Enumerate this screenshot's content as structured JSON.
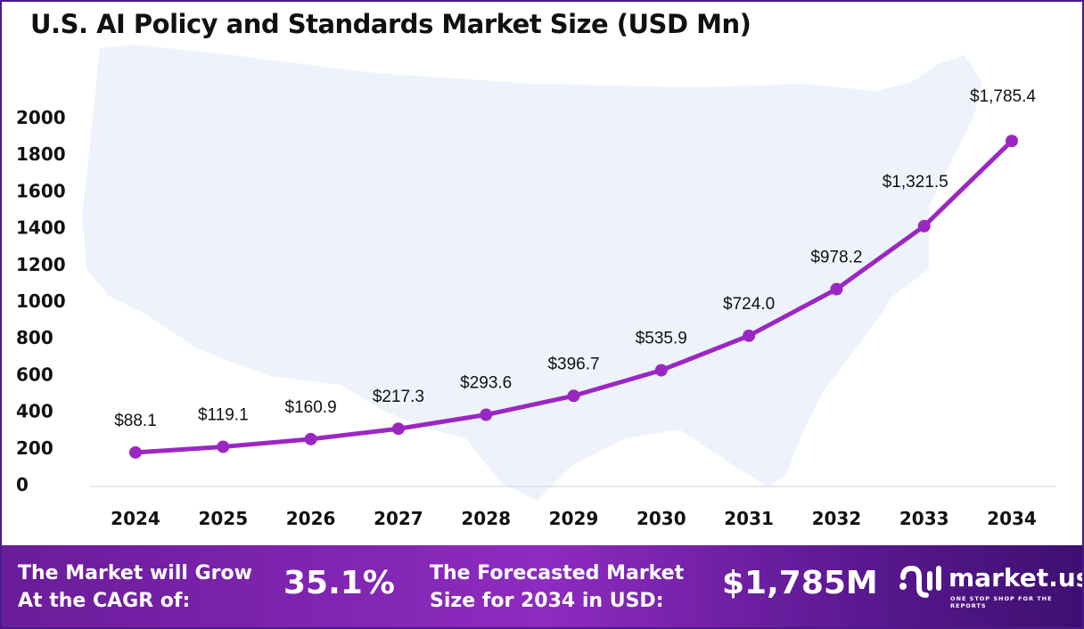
{
  "title": "U.S. AI Policy and Standards Market Size (USD Mn)",
  "chart_data": {
    "type": "line",
    "categories": [
      "2024",
      "2025",
      "2026",
      "2027",
      "2028",
      "2029",
      "2030",
      "2031",
      "2032",
      "2033",
      "2034"
    ],
    "values": [
      88.1,
      119.1,
      160.9,
      217.3,
      293.6,
      396.7,
      535.9,
      724.0,
      978.2,
      1321.5,
      1785.4
    ],
    "data_labels": [
      "$88.1",
      "$119.1",
      "$160.9",
      "$217.3",
      "$293.6",
      "$396.7",
      "$535.9",
      "$724.0",
      "$978.2",
      "$1,321.5",
      "$1,785.4"
    ],
    "yticks": [
      "0",
      "200",
      "400",
      "600",
      "800",
      "1000",
      "1200",
      "1400",
      "1600",
      "1800",
      "2000"
    ],
    "ylim": [
      0,
      2000
    ],
    "grid": false,
    "line_color": "#9b27c2",
    "background": "US map silhouette"
  },
  "footer": {
    "cagr_label": "The Market will Grow At the CAGR of:",
    "cagr_value": "35.1%",
    "forecast_label": "The Forecasted Market Size for 2034 in USD:",
    "forecast_value": "$1,785M",
    "logo_text": "market.us",
    "logo_tagline": "ONE STOP SHOP FOR THE REPORTS"
  }
}
